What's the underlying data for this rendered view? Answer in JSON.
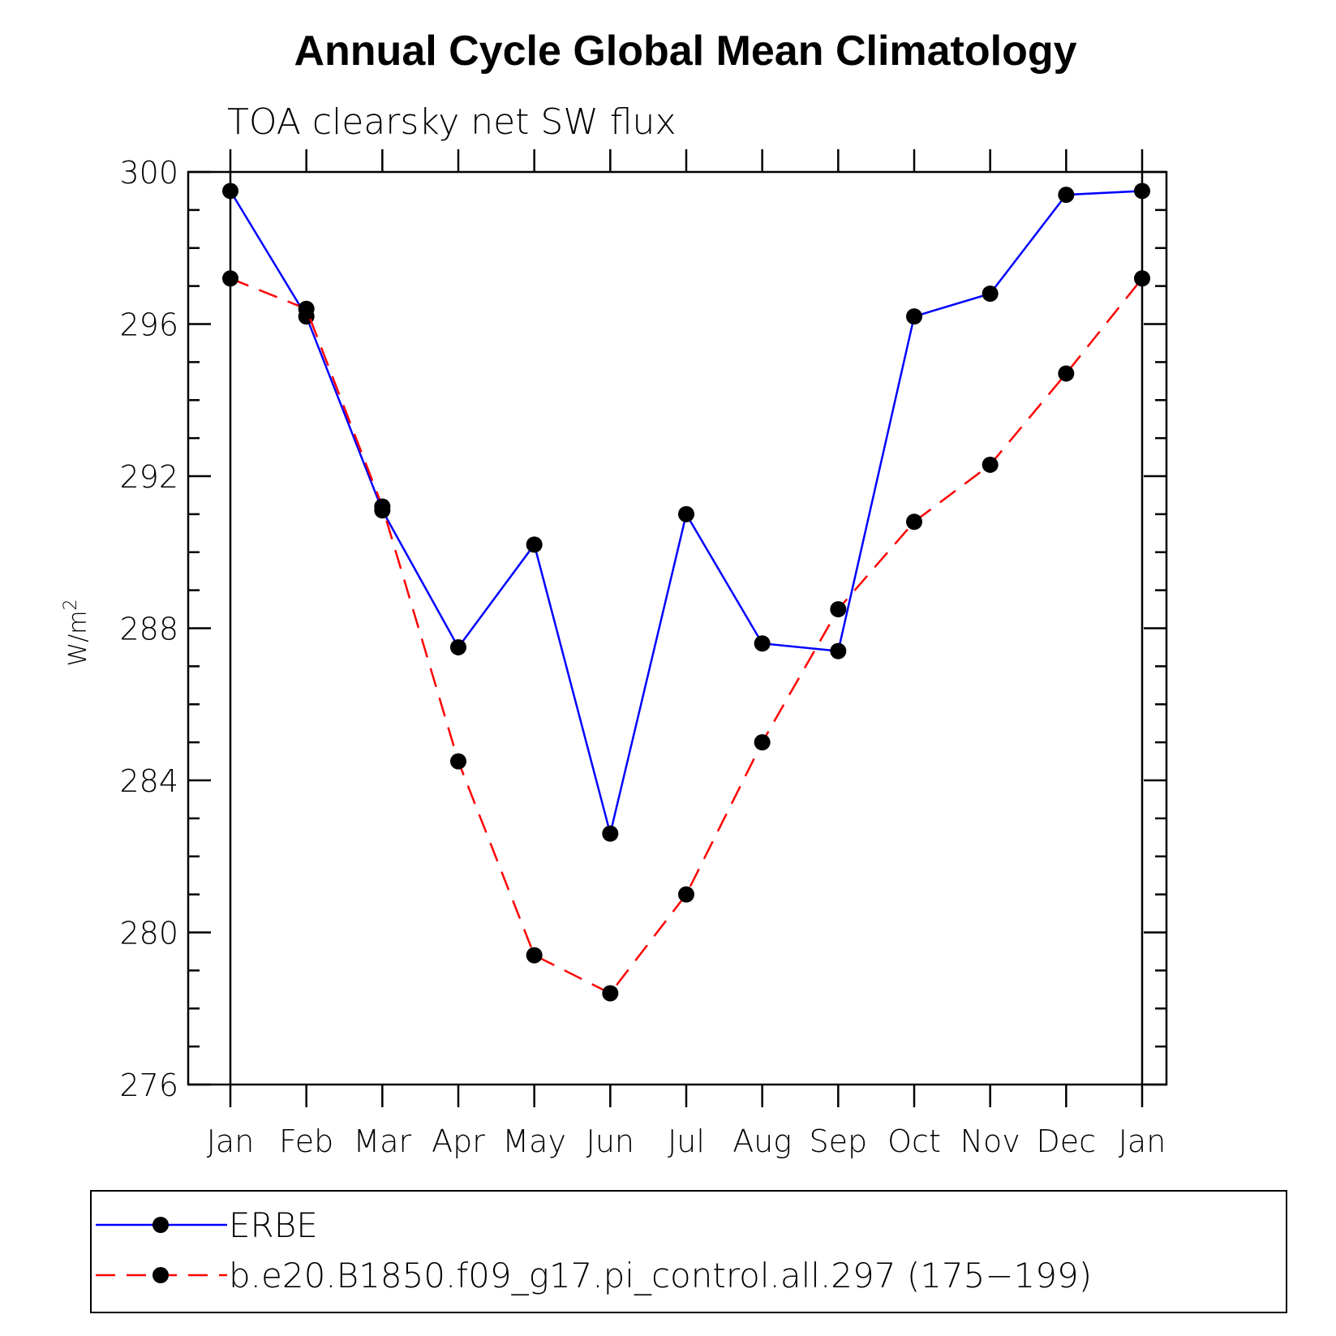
{
  "chart_data": {
    "type": "line",
    "title": "Annual Cycle Global Mean Climatology",
    "subtitle": "TOA clearsky net SW flux",
    "ylabel": "W/m",
    "ylabel_sup": "2",
    "xlabel": "",
    "ylim": [
      276,
      300
    ],
    "yticks": [
      276,
      280,
      284,
      288,
      292,
      296,
      300
    ],
    "categories": [
      "Jan",
      "Feb",
      "Mar",
      "Apr",
      "May",
      "Jun",
      "Jul",
      "Aug",
      "Sep",
      "Oct",
      "Nov",
      "Dec",
      "Jan"
    ],
    "grid": false,
    "legend_position": "bottom",
    "series": [
      {
        "name": "ERBE",
        "color": "#0000ff",
        "dash": "solid",
        "marker": "filled-circle",
        "values": [
          299.5,
          296.2,
          291.1,
          287.5,
          290.2,
          282.6,
          291.0,
          287.6,
          287.4,
          296.2,
          296.8,
          299.4,
          299.5
        ]
      },
      {
        "name": "b.e20.B1850.f09_g17.pi_control.all.297 (175−199)",
        "color": "#ff0000",
        "dash": "dashed",
        "marker": "filled-circle",
        "values": [
          297.2,
          296.4,
          291.2,
          284.5,
          279.4,
          278.4,
          281.0,
          285.0,
          288.5,
          290.8,
          292.3,
          294.7,
          297.2
        ]
      }
    ]
  }
}
